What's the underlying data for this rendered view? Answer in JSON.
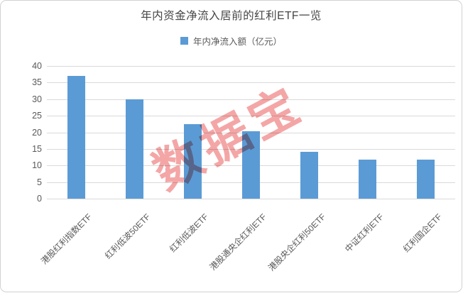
{
  "chart_data": {
    "type": "bar",
    "title": "年内资金净流入居前的红利ETF一览",
    "categories": [
      "港股红利指数ETF",
      "红利低波50ETF",
      "红利低波ETF",
      "港股通央企红利ETF",
      "港股央企红利50ETF",
      "中证红利ETF",
      "红利国企ETF"
    ],
    "series": [
      {
        "name": "年内净流入额（亿元）",
        "values": [
          36.9,
          30.0,
          22.4,
          20.4,
          14.1,
          11.8,
          11.8
        ],
        "color": "#5B9BD5"
      }
    ],
    "xlabel": "",
    "ylabel": "",
    "ylim": [
      0,
      40
    ],
    "ytick_step": 5,
    "yticks": [
      0,
      5,
      10,
      15,
      20,
      25,
      30,
      35,
      40
    ],
    "grid": true,
    "legend_position": "top-center",
    "x_label_rotation_deg": 45
  },
  "watermark": {
    "text": "数据宝",
    "color": "#EA4D4D"
  },
  "colors": {
    "bar": "#5B9BD5",
    "gridline": "#D9D9D9",
    "axis_text": "#595959",
    "title_text": "#454545",
    "frame_border": "#D2D2D2"
  }
}
